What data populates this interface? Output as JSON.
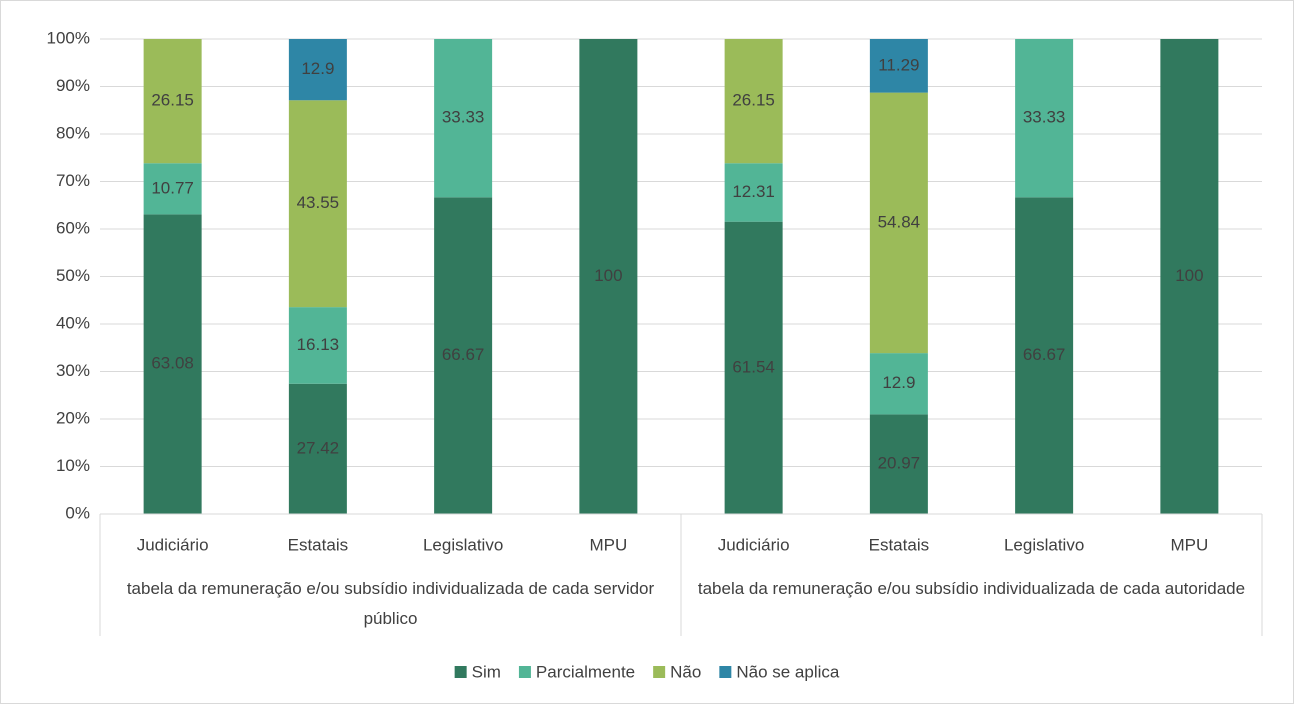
{
  "chart_data": {
    "type": "stacked_bar",
    "groups": [
      {
        "name": "tabela da remuneração e/ou subsídio individualizada de cada servidor público",
        "categories": [
          "Judiciário",
          "Estatais",
          "Legislativo",
          "MPU"
        ]
      },
      {
        "name": "tabela da remuneração e/ou subsídio individualizada de cada autoridade",
        "categories": [
          "Judiciário",
          "Estatais",
          "Legislativo",
          "MPU"
        ]
      }
    ],
    "series": [
      {
        "name": "Sim",
        "color": "#31795e",
        "values": [
          63.08,
          27.42,
          66.67,
          100,
          61.54,
          20.97,
          66.67,
          100
        ]
      },
      {
        "name": "Parcialmente",
        "color": "#52b596",
        "values": [
          10.77,
          16.13,
          33.33,
          null,
          12.31,
          12.9,
          33.33,
          null
        ]
      },
      {
        "name": "Não",
        "color": "#9bbb59",
        "values": [
          26.15,
          43.55,
          null,
          null,
          26.15,
          54.84,
          null,
          null
        ]
      },
      {
        "name": "Não se aplica",
        "color": "#2e86a6",
        "values": [
          null,
          12.9,
          null,
          null,
          null,
          11.29,
          null,
          null
        ]
      }
    ],
    "ylim": [
      0,
      100
    ],
    "yticks": [
      {
        "value": 0,
        "label": "0%"
      },
      {
        "value": 10,
        "label": "10%"
      },
      {
        "value": 20,
        "label": "20%"
      },
      {
        "value": 30,
        "label": "30%"
      },
      {
        "value": 40,
        "label": "40%"
      },
      {
        "value": 50,
        "label": "50%"
      },
      {
        "value": 60,
        "label": "60%"
      },
      {
        "value": 70,
        "label": "70%"
      },
      {
        "value": 80,
        "label": "80%"
      },
      {
        "value": 90,
        "label": "90%"
      },
      {
        "value": 100,
        "label": "100%"
      }
    ],
    "grid": true,
    "legend": "bottom"
  }
}
